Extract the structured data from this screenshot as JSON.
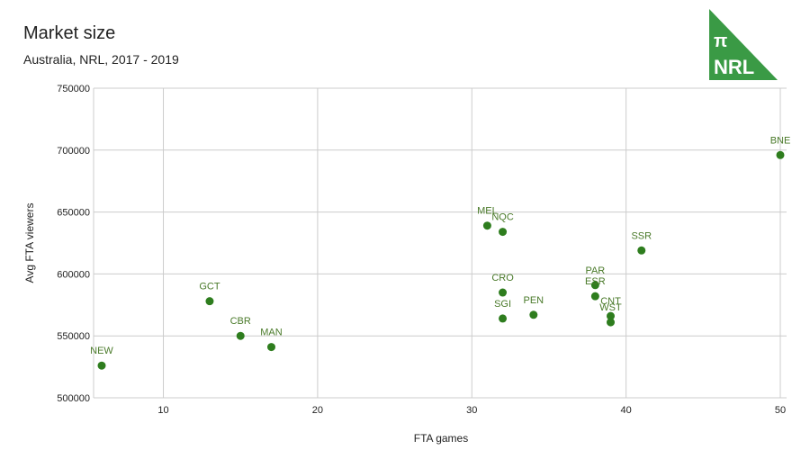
{
  "header": {
    "title": "Market size",
    "subtitle": "Australia, NRL, 2017 - 2019"
  },
  "logo": {
    "symbol": "π",
    "text": "NRL",
    "color": "#3a9a45",
    "text_color": "#ffffff"
  },
  "colors": {
    "point": "#2e7d1e",
    "label": "#4a7a2a",
    "grid": "#cccccc",
    "axis_text": "#222222"
  },
  "chart_data": {
    "type": "scatter",
    "xlabel": "FTA games",
    "ylabel": "Avg FTA viewers",
    "xlim": [
      6,
      50
    ],
    "ylim": [
      500000,
      750000
    ],
    "xticks": [
      10,
      20,
      30,
      40,
      50
    ],
    "yticks": [
      500000,
      550000,
      600000,
      650000,
      700000,
      750000
    ],
    "grid": true,
    "points": [
      {
        "label": "NEW",
        "x": 6,
        "y": 526000
      },
      {
        "label": "GCT",
        "x": 13,
        "y": 578000
      },
      {
        "label": "CBR",
        "x": 15,
        "y": 550000
      },
      {
        "label": "MAN",
        "x": 17,
        "y": 541000
      },
      {
        "label": "MEL",
        "x": 31,
        "y": 639000
      },
      {
        "label": "NQC",
        "x": 32,
        "y": 634000
      },
      {
        "label": "CRO",
        "x": 32,
        "y": 585000
      },
      {
        "label": "SGI",
        "x": 32,
        "y": 564000
      },
      {
        "label": "PEN",
        "x": 34,
        "y": 567000
      },
      {
        "label": "PAR",
        "x": 38,
        "y": 591000
      },
      {
        "label": "ESR",
        "x": 38,
        "y": 582000
      },
      {
        "label": "CNT",
        "x": 39,
        "y": 566000
      },
      {
        "label": "WST",
        "x": 39,
        "y": 561000
      },
      {
        "label": "SSR",
        "x": 41,
        "y": 619000
      },
      {
        "label": "BNE",
        "x": 50,
        "y": 696000
      }
    ]
  }
}
